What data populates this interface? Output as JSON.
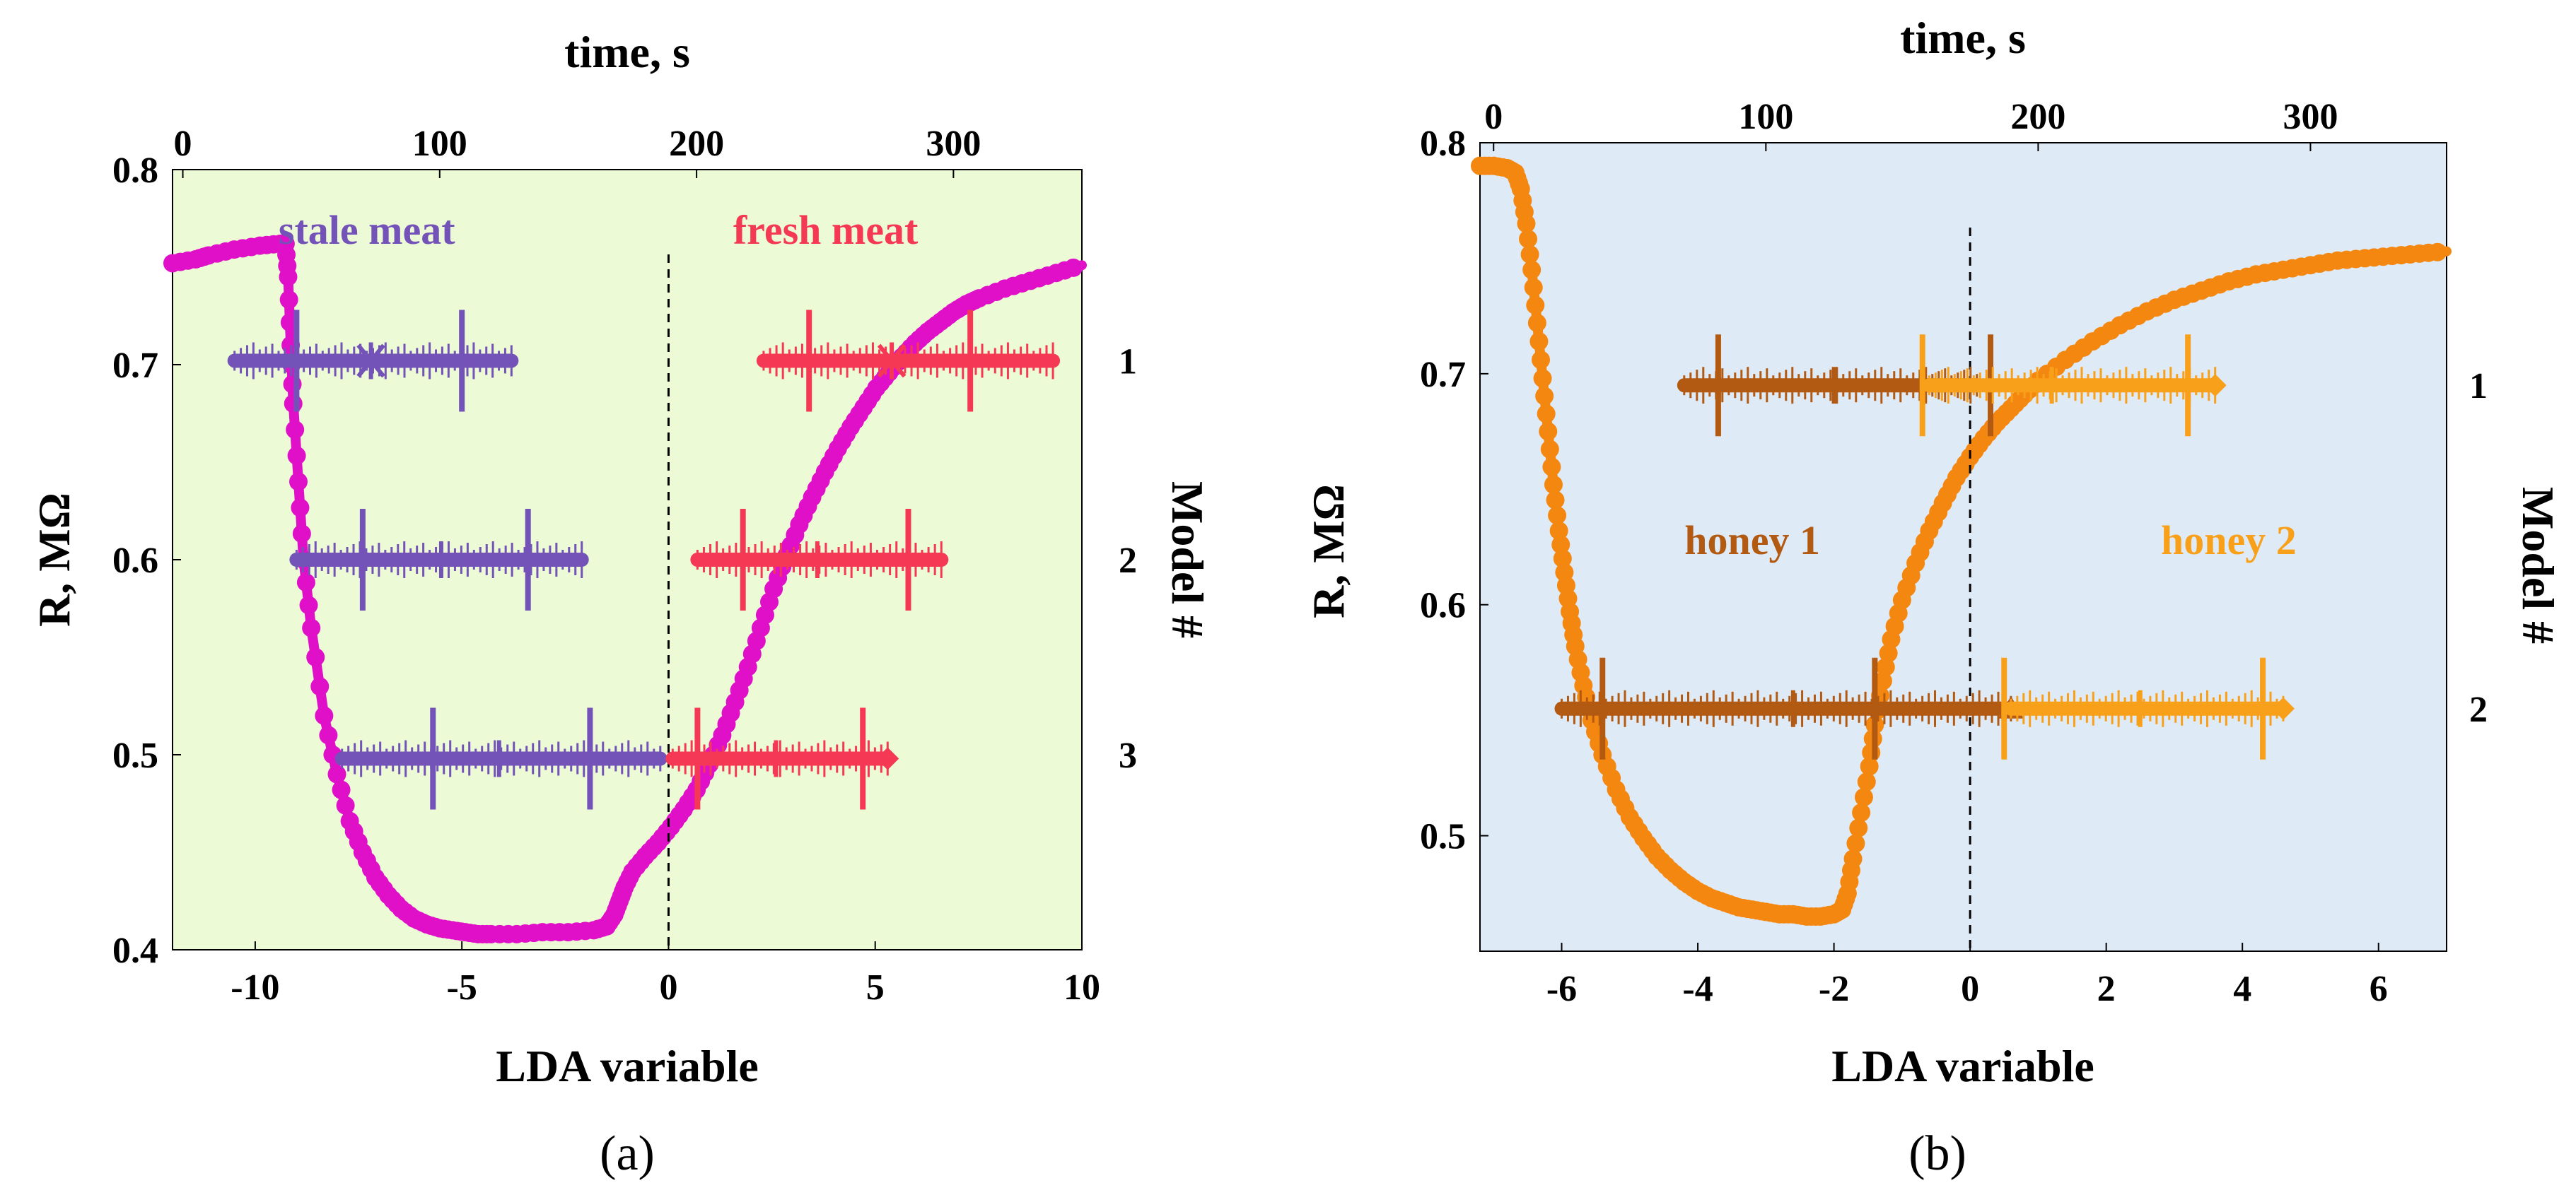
{
  "chart_data": [
    {
      "type": "scatter",
      "panel_label": "(a)",
      "background_color": "#ecfad6",
      "xlabel": "LDA variable",
      "x2label": "time, s",
      "ylabel": "R, MΩ",
      "y2label": "Model #",
      "xlim": [
        -12,
        10
      ],
      "ylim": [
        0.4,
        0.8
      ],
      "time_lim": [
        -4,
        350
      ],
      "x_ticks": [
        -10,
        -5,
        0,
        5,
        10
      ],
      "x_tick_labels": [
        "-10",
        "-5",
        "0",
        "5",
        "10"
      ],
      "time_ticks": [
        0,
        100,
        200,
        300
      ],
      "time_tick_labels": [
        "0",
        "100",
        "200",
        "300"
      ],
      "y_ticks": [
        0.4,
        0.5,
        0.6,
        0.7,
        0.8
      ],
      "y_tick_labels": [
        "0.4",
        "0.5",
        "0.6",
        "0.7",
        "0.8"
      ],
      "model_ticks": [
        {
          "label": "1",
          "r": 0.702
        },
        {
          "label": "2",
          "r": 0.6
        },
        {
          "label": "3",
          "r": 0.5
        }
      ],
      "class_labels": [
        {
          "text": "stale meat",
          "color": "#7453b8",
          "x": -7.3,
          "r": 0.762
        },
        {
          "text": "fresh meat",
          "color": "#f53955",
          "x": 3.8,
          "r": 0.762
        }
      ],
      "response_curve": {
        "color": "#e010c8",
        "time": [
          -4,
          5,
          10,
          20,
          30,
          38,
          40,
          41,
          42,
          43,
          45,
          47,
          50,
          55,
          60,
          65,
          70,
          75,
          80,
          85,
          90,
          95,
          100,
          105,
          110,
          115,
          120,
          130,
          140,
          150,
          160,
          165,
          168,
          170,
          172,
          175,
          180,
          185,
          190,
          195,
          200,
          205,
          210,
          215,
          220,
          225,
          230,
          235,
          240,
          245,
          250,
          255,
          260,
          265,
          270,
          275,
          280,
          285,
          290,
          295,
          300,
          305,
          310,
          320,
          330,
          340,
          350
        ],
        "r": [
          0.752,
          0.754,
          0.756,
          0.759,
          0.761,
          0.762,
          0.762,
          0.745,
          0.71,
          0.68,
          0.64,
          0.6,
          0.565,
          0.52,
          0.49,
          0.466,
          0.45,
          0.437,
          0.428,
          0.421,
          0.416,
          0.413,
          0.411,
          0.41,
          0.409,
          0.408,
          0.408,
          0.408,
          0.409,
          0.409,
          0.41,
          0.412,
          0.418,
          0.425,
          0.432,
          0.44,
          0.448,
          0.455,
          0.463,
          0.472,
          0.482,
          0.495,
          0.51,
          0.527,
          0.545,
          0.565,
          0.585,
          0.602,
          0.618,
          0.632,
          0.645,
          0.657,
          0.668,
          0.678,
          0.688,
          0.696,
          0.704,
          0.711,
          0.717,
          0.722,
          0.727,
          0.731,
          0.734,
          0.739,
          0.743,
          0.747,
          0.751
        ]
      },
      "groups": [
        {
          "name": "stale meat",
          "model": "1",
          "color": "#7453b8",
          "r": 0.702,
          "lda_min": -10.5,
          "lda_max": -3.8,
          "mean": -7.2,
          "bounds": [
            -9.0,
            -5.0
          ],
          "marker": "star"
        },
        {
          "name": "fresh meat",
          "model": "1",
          "color": "#f53955",
          "r": 0.702,
          "lda_min": 2.3,
          "lda_max": 9.3,
          "mean": 5.4,
          "bounds": [
            3.4,
            7.3
          ],
          "marker": "star"
        },
        {
          "name": "stale meat",
          "model": "2",
          "color": "#7453b8",
          "r": 0.6,
          "lda_min": -9.0,
          "lda_max": -2.1,
          "mean": -5.5,
          "bounds": [
            -7.4,
            -3.4
          ],
          "marker": "bar"
        },
        {
          "name": "fresh meat",
          "model": "2",
          "color": "#f53955",
          "r": 0.6,
          "lda_min": 0.7,
          "lda_max": 6.6,
          "mean": 3.6,
          "bounds": [
            1.8,
            5.8
          ],
          "marker": "bar"
        },
        {
          "name": "stale meat",
          "model": "3",
          "color": "#7453b8",
          "r": 0.498,
          "lda_min": -7.9,
          "lda_max": -0.2,
          "mean": -4.1,
          "bounds": [
            -5.7,
            -1.9
          ],
          "marker": "bar"
        },
        {
          "name": "fresh meat",
          "model": "3",
          "color": "#f53955",
          "r": 0.498,
          "lda_min": 0.1,
          "lda_max": 5.3,
          "mean": 2.6,
          "bounds": [
            0.7,
            4.7
          ],
          "marker": "diamond"
        }
      ]
    },
    {
      "type": "scatter",
      "panel_label": "(b)",
      "background_color": "#dfeaf7",
      "xlabel": "LDA variable",
      "x2label": "time, s",
      "ylabel": "R, MΩ",
      "y2label": "Model #",
      "xlim": [
        -7.2,
        7.0
      ],
      "ylim": [
        0.45,
        0.8
      ],
      "time_lim": [
        -5,
        350
      ],
      "x_ticks": [
        -6,
        -4,
        -2,
        0,
        2,
        4,
        6
      ],
      "x_tick_labels": [
        "-6",
        "-4",
        "-2",
        "0",
        "2",
        "4",
        "6"
      ],
      "time_ticks": [
        0,
        100,
        200,
        300
      ],
      "time_tick_labels": [
        "0",
        "100",
        "200",
        "300"
      ],
      "y_ticks": [
        0.5,
        0.6,
        0.7,
        0.8
      ],
      "y_tick_labels": [
        "0.5",
        "0.6",
        "0.7",
        "0.8"
      ],
      "model_ticks": [
        {
          "label": "1",
          "r": 0.695
        },
        {
          "label": "2",
          "r": 0.555
        }
      ],
      "class_labels": [
        {
          "text": "honey 1",
          "color": "#b35a12",
          "x": -3.2,
          "r": 0.622
        },
        {
          "text": "honey 2",
          "color": "#f9a01b",
          "x": 3.8,
          "r": 0.622
        }
      ],
      "response_curve": {
        "color": "#f4870f",
        "time": [
          -5,
          0,
          5,
          8,
          10,
          12,
          14,
          16,
          18,
          20,
          22,
          24,
          26,
          28,
          30,
          33,
          36,
          40,
          45,
          50,
          55,
          60,
          65,
          70,
          75,
          80,
          85,
          90,
          95,
          100,
          105,
          110,
          115,
          120,
          125,
          128,
          130,
          132,
          135,
          138,
          140,
          143,
          146,
          150,
          155,
          160,
          165,
          170,
          175,
          180,
          185,
          190,
          195,
          200,
          210,
          220,
          230,
          240,
          250,
          260,
          270,
          280,
          290,
          300,
          310,
          320,
          330,
          340,
          350
        ],
        "r": [
          0.79,
          0.79,
          0.789,
          0.787,
          0.78,
          0.765,
          0.745,
          0.722,
          0.698,
          0.675,
          0.652,
          0.632,
          0.614,
          0.597,
          0.582,
          0.565,
          0.55,
          0.535,
          0.52,
          0.508,
          0.499,
          0.491,
          0.485,
          0.48,
          0.476,
          0.473,
          0.471,
          0.469,
          0.468,
          0.467,
          0.466,
          0.466,
          0.465,
          0.465,
          0.466,
          0.468,
          0.475,
          0.49,
          0.51,
          0.53,
          0.548,
          0.567,
          0.585,
          0.602,
          0.618,
          0.632,
          0.644,
          0.655,
          0.664,
          0.672,
          0.679,
          0.685,
          0.691,
          0.697,
          0.706,
          0.714,
          0.721,
          0.727,
          0.732,
          0.736,
          0.74,
          0.743,
          0.745,
          0.747,
          0.749,
          0.75,
          0.751,
          0.752,
          0.753
        ]
      },
      "groups": [
        {
          "name": "honey 1",
          "model": "1",
          "color": "#b35a12",
          "r": 0.695,
          "lda_min": -4.2,
          "lda_max": 0.1,
          "mean": -2.0,
          "bounds": [
            -3.7,
            0.3
          ],
          "marker": "bar"
        },
        {
          "name": "honey 2",
          "model": "1",
          "color": "#f9a01b",
          "r": 0.695,
          "lda_min": -0.6,
          "lda_max": 3.6,
          "mean": 1.2,
          "bounds": [
            -0.7,
            3.2
          ],
          "marker": "diamond"
        },
        {
          "name": "honey 1",
          "model": "2",
          "color": "#b35a12",
          "r": 0.555,
          "lda_min": -6.0,
          "lda_max": 0.6,
          "mean": -2.6,
          "bounds": [
            -5.4,
            -1.4
          ],
          "marker": "triangle"
        },
        {
          "name": "honey 2",
          "model": "2",
          "color": "#f9a01b",
          "r": 0.555,
          "lda_min": 0.6,
          "lda_max": 4.6,
          "mean": 2.5,
          "bounds": [
            0.5,
            4.3
          ],
          "marker": "diamond"
        }
      ]
    }
  ]
}
